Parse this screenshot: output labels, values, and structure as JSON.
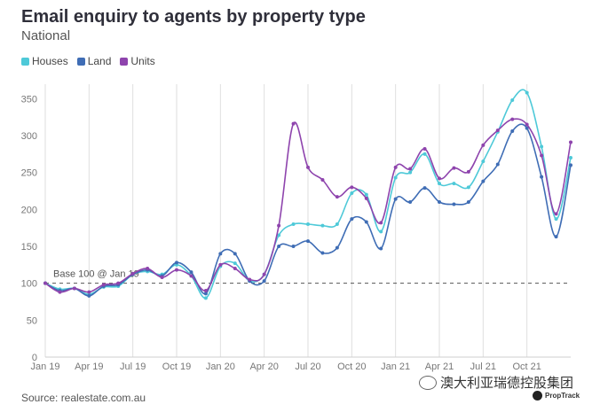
{
  "chart_data": {
    "type": "line",
    "title": "Email enquiry to agents by property type",
    "subtitle": "National",
    "ylim": [
      0,
      360
    ],
    "yticks": [
      0,
      50,
      100,
      150,
      200,
      250,
      300,
      350
    ],
    "baseline": {
      "value": 100,
      "label": "Base 100 @ Jan 19"
    },
    "x": [
      "Jan 19",
      "Feb 19",
      "Mar 19",
      "Apr 19",
      "May 19",
      "Jun 19",
      "Jul 19",
      "Aug 19",
      "Sep 19",
      "Oct 19",
      "Nov 19",
      "Dec 19",
      "Jan 20",
      "Feb 20",
      "Mar 20",
      "Apr 20",
      "May 20",
      "Jun 20",
      "Jul 20",
      "Aug 20",
      "Sep 20",
      "Oct 20",
      "Nov 20",
      "Dec 20",
      "Jan 21",
      "Feb 21",
      "Mar 21",
      "Apr 21",
      "May 21",
      "Jun 21",
      "Jul 21",
      "Aug 21",
      "Sep 21",
      "Oct 21",
      "Nov 21",
      "Dec 21",
      "Jan 22"
    ],
    "xtick_labels": [
      {
        "index": 0,
        "label": "Jan 19"
      },
      {
        "index": 3,
        "label": "Apr 19"
      },
      {
        "index": 6,
        "label": "Jul 19"
      },
      {
        "index": 9,
        "label": "Oct 19"
      },
      {
        "index": 12,
        "label": "Jan 20"
      },
      {
        "index": 15,
        "label": "Apr 20"
      },
      {
        "index": 18,
        "label": "Jul 20"
      },
      {
        "index": 21,
        "label": "Oct 20"
      },
      {
        "index": 24,
        "label": "Jan 21"
      },
      {
        "index": 27,
        "label": "Apr 21"
      },
      {
        "index": 30,
        "label": "Jul 21"
      },
      {
        "index": 33,
        "label": "Oct 21"
      }
    ],
    "series": [
      {
        "name": "Houses",
        "color": "#4ec9d8",
        "values": [
          100,
          92,
          93,
          85,
          95,
          96,
          112,
          116,
          112,
          125,
          110,
          80,
          123,
          127,
          103,
          112,
          165,
          180,
          180,
          178,
          180,
          222,
          220,
          170,
          243,
          250,
          275,
          235,
          235,
          230,
          265,
          305,
          348,
          358,
          285,
          187,
          270
        ]
      },
      {
        "name": "Land",
        "color": "#3f6db5",
        "values": [
          100,
          90,
          93,
          83,
          96,
          98,
          112,
          118,
          110,
          128,
          115,
          86,
          140,
          140,
          103,
          103,
          150,
          150,
          157,
          141,
          148,
          187,
          183,
          147,
          214,
          210,
          229,
          210,
          207,
          210,
          238,
          261,
          306,
          310,
          244,
          163,
          260
        ]
      },
      {
        "name": "Units",
        "color": "#8e44ad",
        "values": [
          100,
          88,
          93,
          88,
          98,
          100,
          113,
          120,
          108,
          118,
          110,
          90,
          125,
          120,
          105,
          112,
          178,
          316,
          257,
          240,
          217,
          230,
          215,
          182,
          257,
          255,
          282,
          242,
          256,
          251,
          287,
          307,
          322,
          315,
          273,
          194,
          291
        ]
      }
    ],
    "legend": "top-left"
  },
  "source": "Source: realestate.com.au",
  "watermark": "澳大利亚瑞德控股集团",
  "brand": "PropTrack"
}
